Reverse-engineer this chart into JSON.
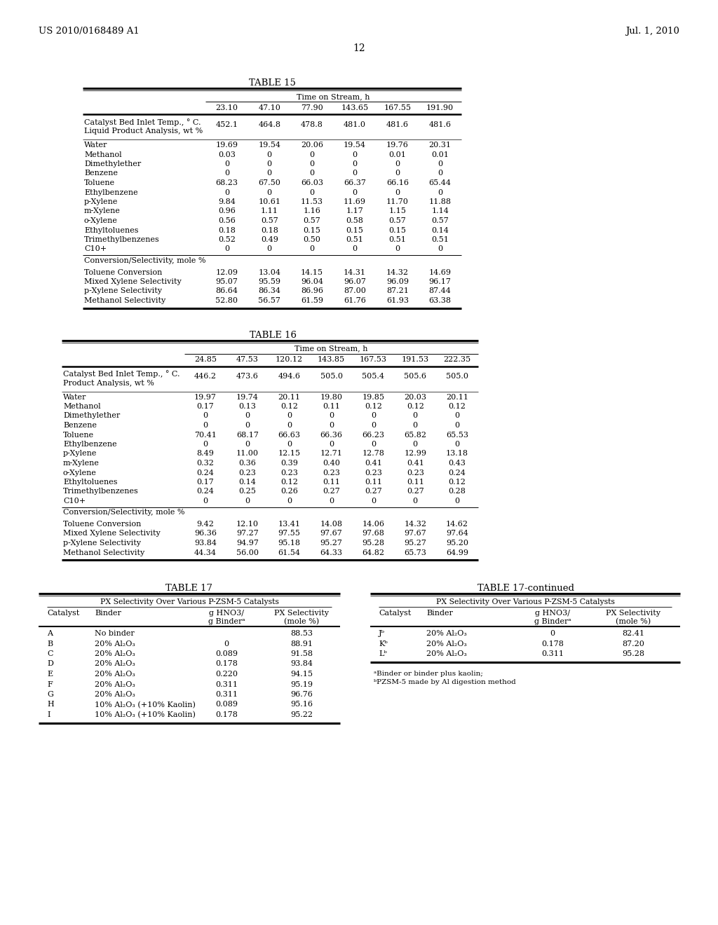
{
  "header_left": "US 2010/0168489 A1",
  "header_right": "Jul. 1, 2010",
  "page_number": "12",
  "background_color": "#ffffff",
  "table15": {
    "title": "TABLE 15",
    "header_label": "Time on Stream, h",
    "time_cols": [
      "23.10",
      "47.10",
      "77.90",
      "143.65",
      "167.55",
      "191.90"
    ],
    "rows": [
      {
        "label": "Catalyst Bed Inlet Temp., ° C.",
        "vals": [
          "452.1",
          "464.8",
          "478.8",
          "481.0",
          "481.6",
          "481.6"
        ],
        "indent": false,
        "subline": "Liquid Product Analysis, wt %",
        "sep_before": false,
        "sep_after": true
      },
      {
        "label": "Water",
        "vals": [
          "19.69",
          "19.54",
          "20.06",
          "19.54",
          "19.76",
          "20.31"
        ],
        "indent": false,
        "subline": "",
        "sep_before": false,
        "sep_after": false
      },
      {
        "label": "Methanol",
        "vals": [
          "0.03",
          "0",
          "0",
          "0",
          "0.01",
          "0.01"
        ],
        "indent": false,
        "subline": "",
        "sep_before": false,
        "sep_after": false
      },
      {
        "label": "Dimethylether",
        "vals": [
          "0",
          "0",
          "0",
          "0",
          "0",
          "0"
        ],
        "indent": false,
        "subline": "",
        "sep_before": false,
        "sep_after": false
      },
      {
        "label": "Benzene",
        "vals": [
          "0",
          "0",
          "0",
          "0",
          "0",
          "0"
        ],
        "indent": false,
        "subline": "",
        "sep_before": false,
        "sep_after": false
      },
      {
        "label": "Toluene",
        "vals": [
          "68.23",
          "67.50",
          "66.03",
          "66.37",
          "66.16",
          "65.44"
        ],
        "indent": false,
        "subline": "",
        "sep_before": false,
        "sep_after": false
      },
      {
        "label": "Ethylbenzene",
        "vals": [
          "0",
          "0",
          "0",
          "0",
          "0",
          "0"
        ],
        "indent": false,
        "subline": "",
        "sep_before": false,
        "sep_after": false
      },
      {
        "label": "p-Xylene",
        "vals": [
          "9.84",
          "10.61",
          "11.53",
          "11.69",
          "11.70",
          "11.88"
        ],
        "indent": false,
        "subline": "",
        "sep_before": false,
        "sep_after": false
      },
      {
        "label": "m-Xylene",
        "vals": [
          "0.96",
          "1.11",
          "1.16",
          "1.17",
          "1.15",
          "1.14"
        ],
        "indent": false,
        "subline": "",
        "sep_before": false,
        "sep_after": false
      },
      {
        "label": "o-Xylene",
        "vals": [
          "0.56",
          "0.57",
          "0.57",
          "0.58",
          "0.57",
          "0.57"
        ],
        "indent": false,
        "subline": "",
        "sep_before": false,
        "sep_after": false
      },
      {
        "label": "Ethyltoluenes",
        "vals": [
          "0.18",
          "0.18",
          "0.15",
          "0.15",
          "0.15",
          "0.14"
        ],
        "indent": false,
        "subline": "",
        "sep_before": false,
        "sep_after": false
      },
      {
        "label": "Trimethylbenzenes",
        "vals": [
          "0.52",
          "0.49",
          "0.50",
          "0.51",
          "0.51",
          "0.51"
        ],
        "indent": false,
        "subline": "",
        "sep_before": false,
        "sep_after": false
      },
      {
        "label": "C10+",
        "vals": [
          "0",
          "0",
          "0",
          "0",
          "0",
          "0"
        ],
        "indent": false,
        "subline": "",
        "sep_before": false,
        "sep_after": false
      },
      {
        "label": "Conversion/Selectivity, mole %",
        "vals": [],
        "indent": false,
        "subline": "",
        "sep_before": true,
        "sep_after": false,
        "section_header": true
      },
      {
        "label": "Toluene Conversion",
        "vals": [
          "12.09",
          "13.04",
          "14.15",
          "14.31",
          "14.32",
          "14.69"
        ],
        "indent": false,
        "subline": "",
        "sep_before": true,
        "sep_after": false
      },
      {
        "label": "Mixed Xylene Selectivity",
        "vals": [
          "95.07",
          "95.59",
          "96.04",
          "96.07",
          "96.09",
          "96.17"
        ],
        "indent": false,
        "subline": "",
        "sep_before": false,
        "sep_after": false
      },
      {
        "label": "p-Xylene Selectivity",
        "vals": [
          "86.64",
          "86.34",
          "86.96",
          "87.00",
          "87.21",
          "87.44"
        ],
        "indent": false,
        "subline": "",
        "sep_before": false,
        "sep_after": false
      },
      {
        "label": "Methanol Selectivity",
        "vals": [
          "52.80",
          "56.57",
          "61.59",
          "61.76",
          "61.93",
          "63.38"
        ],
        "indent": false,
        "subline": "",
        "sep_before": false,
        "sep_after": false
      }
    ]
  },
  "table16": {
    "title": "TABLE 16",
    "header_label": "Time on Stream, h",
    "time_cols": [
      "24.85",
      "47.53",
      "120.12",
      "143.85",
      "167.53",
      "191.53",
      "222.35"
    ],
    "rows": [
      {
        "label": "Catalyst Bed Inlet Temp., ° C.",
        "vals": [
          "446.2",
          "473.6",
          "494.6",
          "505.0",
          "505.4",
          "505.6",
          "505.0"
        ],
        "subline": "Product Analysis, wt %",
        "sep_before": false,
        "sep_after": true
      },
      {
        "label": "Water",
        "vals": [
          "19.97",
          "19.74",
          "20.11",
          "19.80",
          "19.85",
          "20.03",
          "20.11"
        ],
        "subline": "",
        "sep_before": false,
        "sep_after": false
      },
      {
        "label": "Methanol",
        "vals": [
          "0.17",
          "0.13",
          "0.12",
          "0.11",
          "0.12",
          "0.12",
          "0.12"
        ],
        "subline": "",
        "sep_before": false,
        "sep_after": false
      },
      {
        "label": "Dimethylether",
        "vals": [
          "0",
          "0",
          "0",
          "0",
          "0",
          "0",
          "0"
        ],
        "subline": "",
        "sep_before": false,
        "sep_after": false
      },
      {
        "label": "Benzene",
        "vals": [
          "0",
          "0",
          "0",
          "0",
          "0",
          "0",
          "0"
        ],
        "subline": "",
        "sep_before": false,
        "sep_after": false
      },
      {
        "label": "Toluene",
        "vals": [
          "70.41",
          "68.17",
          "66.63",
          "66.36",
          "66.23",
          "65.82",
          "65.53"
        ],
        "subline": "",
        "sep_before": false,
        "sep_after": false
      },
      {
        "label": "Ethylbenzene",
        "vals": [
          "0",
          "0",
          "0",
          "0",
          "0",
          "0",
          "0"
        ],
        "subline": "",
        "sep_before": false,
        "sep_after": false
      },
      {
        "label": "p-Xylene",
        "vals": [
          "8.49",
          "11.00",
          "12.15",
          "12.71",
          "12.78",
          "12.99",
          "13.18"
        ],
        "subline": "",
        "sep_before": false,
        "sep_after": false
      },
      {
        "label": "m-Xylene",
        "vals": [
          "0.32",
          "0.36",
          "0.39",
          "0.40",
          "0.41",
          "0.41",
          "0.43"
        ],
        "subline": "",
        "sep_before": false,
        "sep_after": false
      },
      {
        "label": "o-Xylene",
        "vals": [
          "0.24",
          "0.23",
          "0.23",
          "0.23",
          "0.23",
          "0.23",
          "0.24"
        ],
        "subline": "",
        "sep_before": false,
        "sep_after": false
      },
      {
        "label": "Ethyltoluenes",
        "vals": [
          "0.17",
          "0.14",
          "0.12",
          "0.11",
          "0.11",
          "0.11",
          "0.12"
        ],
        "subline": "",
        "sep_before": false,
        "sep_after": false
      },
      {
        "label": "Trimethylbenzenes",
        "vals": [
          "0.24",
          "0.25",
          "0.26",
          "0.27",
          "0.27",
          "0.27",
          "0.28"
        ],
        "subline": "",
        "sep_before": false,
        "sep_after": false
      },
      {
        "label": "C10+",
        "vals": [
          "0",
          "0",
          "0",
          "0",
          "0",
          "0",
          "0"
        ],
        "subline": "",
        "sep_before": false,
        "sep_after": false
      },
      {
        "label": "Conversion/Selectivity, mole %",
        "vals": [],
        "subline": "",
        "sep_before": true,
        "sep_after": false,
        "section_header": true
      },
      {
        "label": "Toluene Conversion",
        "vals": [
          "9.42",
          "12.10",
          "13.41",
          "14.08",
          "14.06",
          "14.32",
          "14.62"
        ],
        "subline": "",
        "sep_before": true,
        "sep_after": false
      },
      {
        "label": "Mixed Xylene Selectivity",
        "vals": [
          "96.36",
          "97.27",
          "97.55",
          "97.67",
          "97.68",
          "97.67",
          "97.64"
        ],
        "subline": "",
        "sep_before": false,
        "sep_after": false
      },
      {
        "label": "p-Xylene Selectivity",
        "vals": [
          "93.84",
          "94.97",
          "95.18",
          "95.27",
          "95.28",
          "95.27",
          "95.20"
        ],
        "subline": "",
        "sep_before": false,
        "sep_after": false
      },
      {
        "label": "Methanol Selectivity",
        "vals": [
          "44.34",
          "56.00",
          "61.54",
          "64.33",
          "64.82",
          "65.73",
          "64.99"
        ],
        "subline": "",
        "sep_before": false,
        "sep_after": false
      }
    ]
  },
  "table17_left": {
    "title": "TABLE 17",
    "subtitle": "PX Selectivity Over Various P-ZSM-5 Catalysts",
    "rows": [
      [
        "A",
        "No binder",
        "",
        "88.53"
      ],
      [
        "B",
        "20% Al₂O₃",
        "0",
        "88.91"
      ],
      [
        "C",
        "20% Al₂O₃",
        "0.089",
        "91.58"
      ],
      [
        "D",
        "20% Al₂O₃",
        "0.178",
        "93.84"
      ],
      [
        "E",
        "20% Al₂O₃",
        "0.220",
        "94.15"
      ],
      [
        "F",
        "20% Al₂O₃",
        "0.311",
        "95.19"
      ],
      [
        "G",
        "20% Al₂O₃",
        "0.311",
        "96.76"
      ],
      [
        "H",
        "10% Al₂O₃ (+10% Kaolin)",
        "0.089",
        "95.16"
      ],
      [
        "I",
        "10% Al₂O₃ (+10% Kaolin)",
        "0.178",
        "95.22"
      ]
    ]
  },
  "table17_right": {
    "title": "TABLE 17-continued",
    "subtitle": "PX Selectivity Over Various P-ZSM-5 Catalysts",
    "rows": [
      [
        "Jᵇ",
        "20% Al₂O₃",
        "0",
        "82.41"
      ],
      [
        "Kᵇ",
        "20% Al₂O₃",
        "0.178",
        "87.20"
      ],
      [
        "Lᵇ",
        "20% Al₂O₃",
        "0.311",
        "95.28"
      ]
    ],
    "footnotes": [
      "ᵃBinder or binder plus kaolin;",
      "ᵇPZSM-5 made by Al digestion method"
    ]
  }
}
